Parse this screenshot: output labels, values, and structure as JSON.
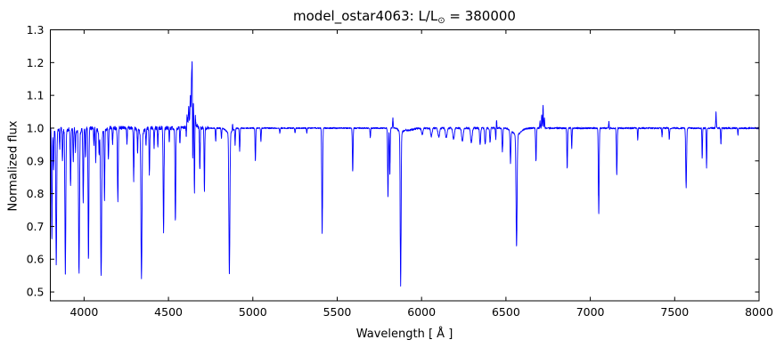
{
  "figure": {
    "title_prefix": "model_ostar4063: L/L",
    "title_sub": "⊙",
    "title_suffix": " = 380000",
    "xlabel": "Wavelength [ Å ]",
    "ylabel": "Normalized flux"
  },
  "chart_data": {
    "type": "line",
    "title": "model_ostar4063: L/L⊙ = 380000",
    "xlabel": "Wavelength [ Å ]",
    "ylabel": "Normalized flux",
    "xlim": [
      3800,
      8000
    ],
    "ylim": [
      0.473,
      1.3
    ],
    "xticks": [
      4000,
      4500,
      5000,
      5500,
      6000,
      6500,
      7000,
      7500,
      8000
    ],
    "yticks": [
      0.5,
      0.6,
      0.7,
      0.8,
      0.9,
      1.0,
      1.1,
      1.2,
      1.3
    ],
    "grid": false,
    "legend": "none",
    "line_color": "#0000ff",
    "axes_color": "#000000",
    "background_color": "#ffffff",
    "series_name": "normalized flux spectrum",
    "continuum": 1.0,
    "absorption_lines": [
      [
        3809,
        0.66,
        2.2
      ],
      [
        3819,
        0.88,
        2.0
      ],
      [
        3835,
        0.59,
        2.6
      ],
      [
        3856,
        0.94,
        1.8
      ],
      [
        3872,
        0.9,
        2.0
      ],
      [
        3889,
        0.57,
        2.6
      ],
      [
        3920,
        0.82,
        2.2
      ],
      [
        3936,
        0.9,
        2.0
      ],
      [
        3949,
        0.93,
        1.8
      ],
      [
        3970,
        0.57,
        2.8
      ],
      [
        3995,
        0.78,
        2.2
      ],
      [
        4009,
        0.91,
        2.0
      ],
      [
        4026,
        0.6,
        2.4
      ],
      [
        4058,
        0.95,
        1.8
      ],
      [
        4069,
        0.9,
        1.8
      ],
      [
        4089,
        0.93,
        1.8
      ],
      [
        4101,
        0.56,
        3.0
      ],
      [
        4121,
        0.79,
        2.0
      ],
      [
        4144,
        0.9,
        2.0
      ],
      [
        4169,
        0.95,
        1.8
      ],
      [
        4200,
        0.78,
        2.4
      ],
      [
        4254,
        0.95,
        1.8
      ],
      [
        4294,
        0.84,
        2.0
      ],
      [
        4317,
        0.93,
        1.8
      ],
      [
        4340,
        0.55,
        3.0
      ],
      [
        4367,
        0.95,
        1.8
      ],
      [
        4387,
        0.86,
        2.2
      ],
      [
        4415,
        0.94,
        1.8
      ],
      [
        4437,
        0.94,
        1.8
      ],
      [
        4471,
        0.68,
        2.4
      ],
      [
        4505,
        0.96,
        1.8
      ],
      [
        4541,
        0.72,
        2.4
      ],
      [
        4568,
        0.95,
        1.8
      ],
      [
        4606,
        0.96,
        1.8
      ],
      [
        4643,
        0.8,
        1.8
      ],
      [
        4654,
        0.78,
        1.8
      ],
      [
        4686,
        0.87,
        2.0
      ],
      [
        4713,
        0.81,
        2.0
      ],
      [
        4780,
        0.96,
        1.8
      ],
      [
        4814,
        0.97,
        1.8
      ],
      [
        4861,
        0.57,
        3.0
      ],
      [
        4895,
        0.95,
        1.8
      ],
      [
        4922,
        0.93,
        2.0
      ],
      [
        5015,
        0.9,
        2.0
      ],
      [
        5048,
        0.96,
        1.8
      ],
      [
        5160,
        0.985,
        1.8
      ],
      [
        5250,
        0.985,
        1.8
      ],
      [
        5320,
        0.985,
        1.8
      ],
      [
        5411,
        0.68,
        2.4
      ],
      [
        5592,
        0.87,
        2.2
      ],
      [
        5696,
        0.97,
        1.8
      ],
      [
        5801,
        0.79,
        2.2
      ],
      [
        5812,
        0.86,
        2.0
      ],
      [
        5876,
        0.53,
        2.6
      ],
      [
        6004,
        0.98,
        4.5
      ],
      [
        6058,
        0.975,
        4.5
      ],
      [
        6102,
        0.972,
        4.5
      ],
      [
        6146,
        0.97,
        4.5
      ],
      [
        6190,
        0.965,
        4.5
      ],
      [
        6242,
        0.96,
        4.5
      ],
      [
        6295,
        0.955,
        4.5
      ],
      [
        6347,
        0.95,
        3.0
      ],
      [
        6377,
        0.95,
        3.0
      ],
      [
        6406,
        0.955,
        2.5
      ],
      [
        6440,
        0.965,
        2.0
      ],
      [
        6479,
        0.93,
        2.5
      ],
      [
        6527,
        0.9,
        2.5
      ],
      [
        6563,
        0.66,
        3.2
      ],
      [
        6678,
        0.9,
        2.2
      ],
      [
        6863,
        0.88,
        2.2
      ],
      [
        6890,
        0.94,
        1.8
      ],
      [
        7050,
        0.74,
        2.4
      ],
      [
        7112,
        0.975,
        1.8
      ],
      [
        7157,
        0.86,
        2.2
      ],
      [
        7281,
        0.965,
        1.8
      ],
      [
        7425,
        0.975,
        1.8
      ],
      [
        7468,
        0.965,
        1.8
      ],
      [
        7568,
        0.82,
        2.6
      ],
      [
        7663,
        0.91,
        1.8
      ],
      [
        7689,
        0.88,
        1.8
      ],
      [
        7774,
        0.95,
        1.8
      ],
      [
        7875,
        0.98,
        1.8
      ]
    ],
    "emission_lines": [
      [
        4610,
        1.03,
        2.5
      ],
      [
        4620,
        1.05,
        2.2
      ],
      [
        4630,
        1.08,
        2.2
      ],
      [
        4637,
        1.13,
        2.0
      ],
      [
        4641,
        1.23,
        1.6
      ],
      [
        4647,
        1.07,
        2.2
      ],
      [
        4658,
        1.03,
        2.2
      ],
      [
        4880,
        1.02,
        1.6
      ],
      [
        5830,
        1.03,
        1.8
      ],
      [
        6444,
        1.03,
        1.6
      ],
      [
        6702,
        1.02,
        1.6
      ],
      [
        6712,
        1.04,
        1.6
      ],
      [
        6720,
        1.07,
        1.6
      ],
      [
        6728,
        1.03,
        1.6
      ],
      [
        7111,
        1.04,
        1.8
      ],
      [
        7745,
        1.05,
        1.8
      ]
    ],
    "broad_features": [
      [
        3835,
        -0.012,
        12
      ],
      [
        3889,
        -0.012,
        12
      ],
      [
        3970,
        -0.012,
        14
      ],
      [
        4101,
        -0.015,
        16
      ],
      [
        4340,
        -0.015,
        16
      ],
      [
        4638,
        0.02,
        22
      ],
      [
        4861,
        -0.015,
        18
      ],
      [
        5876,
        -0.012,
        12
      ],
      [
        5920,
        -0.006,
        30
      ],
      [
        6563,
        -0.02,
        25
      ]
    ],
    "noise_regions": [
      [
        3800,
        4740,
        0.006
      ],
      [
        4740,
        5850,
        0.002
      ],
      [
        5850,
        6480,
        0.003
      ],
      [
        6480,
        8000,
        0.0025
      ]
    ]
  }
}
